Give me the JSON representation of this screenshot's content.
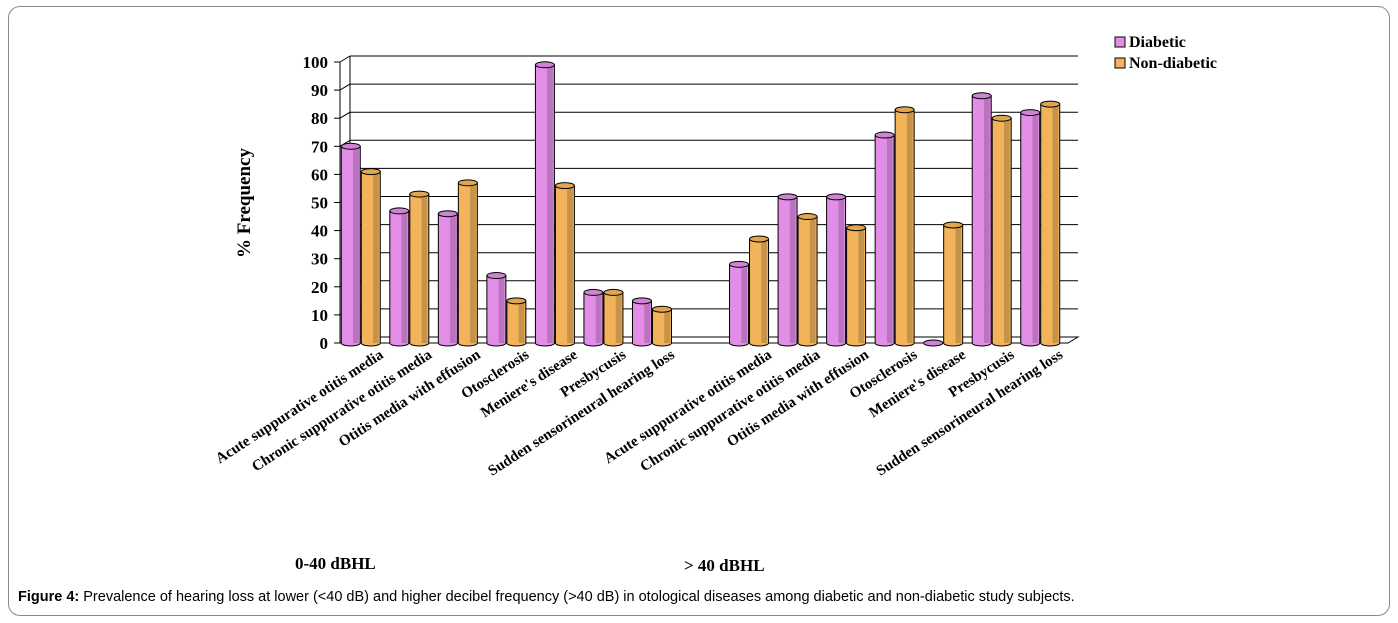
{
  "chart_data": {
    "type": "bar",
    "ylabel": "% Frequency",
    "ylim": [
      0,
      100
    ],
    "yticks": [
      "0",
      "10",
      "20",
      "30",
      "40",
      "50",
      "60",
      "70",
      "80",
      "90",
      "100"
    ],
    "grid": true,
    "legend_position": "top-right",
    "categories": [
      "Acute suppurative otitis media",
      "Chronic suppurative otitis media",
      "Otitis media with effusion",
      "Otosclerosis",
      "Meniere's disease",
      "Presbycusis",
      "Sudden sensorineural hearing loss",
      "",
      "Acute suppurative otitis media",
      "Chronic suppurative otitis media",
      "Otitis media with effusion",
      "Otosclerosis",
      "Meniere's disease",
      "Presbycusis",
      "Sudden sensorineural hearing loss"
    ],
    "groups": [
      "0-40 dBHL",
      "> 40 dBHL"
    ],
    "series": [
      {
        "name": "Diabetic",
        "color": "#e28ee6",
        "values": [
          70,
          47,
          46,
          24,
          99,
          18,
          15,
          null,
          28,
          52,
          52,
          74,
          0,
          88,
          82
        ]
      },
      {
        "name": "Non-diabetic",
        "color": "#f2b35a",
        "values": [
          61,
          53,
          57,
          15,
          56,
          18,
          12,
          null,
          37,
          45,
          41,
          83,
          42,
          80,
          85
        ]
      }
    ]
  },
  "caption": {
    "label": "Figure 4:",
    "text": " Prevalence of hearing loss at lower (<40 dB) and higher decibel frequency (>40 dB) in otological diseases among diabetic and non-diabetic study subjects."
  }
}
